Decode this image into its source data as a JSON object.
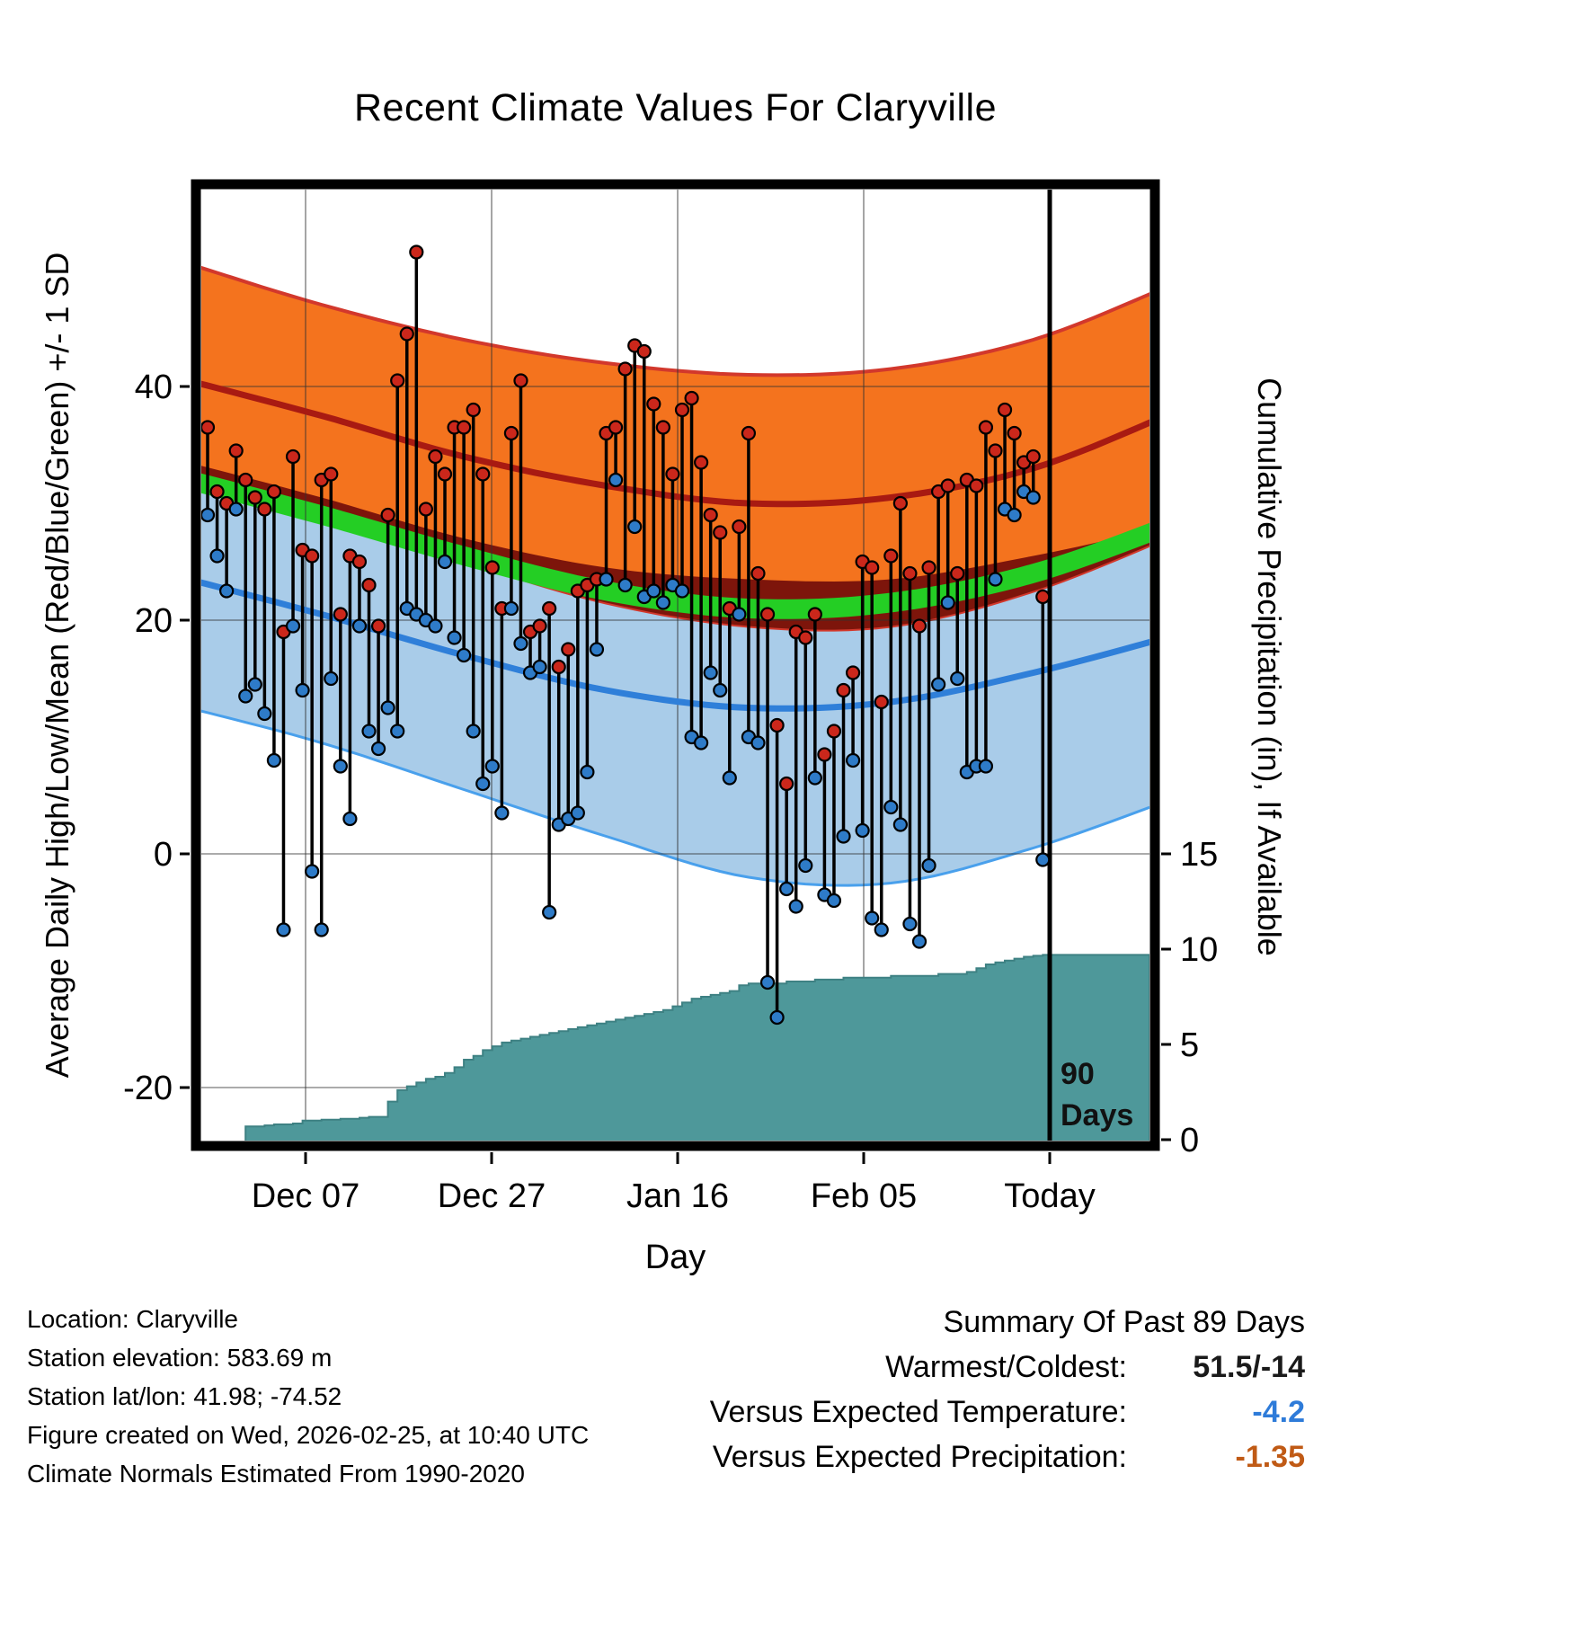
{
  "chart_data": {
    "type": "line",
    "title": "Recent Climate Values For Claryville",
    "xlabel": "Day",
    "ylabel_left": "Average Daily High/Low/Mean (Red/Blue/Green) +/- 1 SD",
    "ylabel_right": "Cumulative Precipitation (in), If Available",
    "x_tick_labels": [
      "Dec 07",
      "Dec 27",
      "Jan 16",
      "Feb 05",
      "Today"
    ],
    "y_ticks_left_f": [
      40,
      20,
      0,
      -20
    ],
    "y_ticks_right_in": [
      15,
      10,
      5,
      0
    ],
    "ylim_left_f": [
      -25,
      57
    ],
    "ylim_right_in": [
      0,
      15
    ],
    "grid": true,
    "marker": {
      "line_label_top": "90",
      "line_label_bottom": "Days"
    },
    "normals_t": [
      -2,
      12,
      27,
      42,
      57,
      72,
      87,
      101
    ],
    "normals": {
      "high_plus_sd": [
        50.5,
        47.0,
        44.0,
        42.0,
        41.0,
        41.5,
        44.0,
        48.5
      ],
      "high_mean": [
        40.5,
        37.5,
        34.0,
        31.5,
        30.0,
        30.5,
        33.0,
        37.5
      ],
      "high_minus_sd": [
        31.5,
        28.5,
        25.0,
        21.5,
        19.5,
        19.5,
        22.5,
        27.0
      ],
      "low_plus_sd": [
        33.5,
        30.5,
        27.0,
        24.5,
        23.5,
        23.5,
        25.5,
        28.0
      ],
      "low_mean": [
        23.5,
        20.5,
        17.0,
        14.0,
        12.5,
        13.0,
        15.5,
        18.5
      ],
      "low_minus_sd": [
        12.5,
        9.5,
        5.5,
        1.5,
        -2.0,
        -2.5,
        0.5,
        4.5
      ],
      "mean": [
        32.0,
        29.0,
        25.5,
        22.5,
        21.0,
        21.5,
        24.0,
        28.0
      ]
    },
    "daily_high_f": [
      36.5,
      31,
      30,
      34.5,
      32,
      30.5,
      29.5,
      31,
      19,
      34,
      26,
      25.5,
      32,
      32.5,
      20.5,
      25.5,
      25,
      23,
      19.5,
      29,
      40.5,
      44.5,
      51.5,
      29.5,
      34,
      32.5,
      36.5,
      36.5,
      38,
      32.5,
      24.5,
      21,
      36,
      40.5,
      19,
      19.5,
      21,
      16,
      17.5,
      22.5,
      23,
      23.5,
      36,
      36.5,
      41.5,
      43.5,
      43,
      38.5,
      36.5,
      32.5,
      38,
      39,
      33.5,
      29,
      27.5,
      21,
      28,
      36,
      24,
      20.5,
      11,
      6,
      19,
      18.5,
      20.5,
      8.5,
      10.5,
      14,
      15.5,
      25,
      24.5,
      13,
      25.5,
      30,
      24,
      19.5,
      24.5,
      31,
      31.5,
      24,
      32,
      31.5,
      36.5,
      34.5,
      38,
      36,
      33.5,
      34,
      22
    ],
    "daily_low_f": [
      29,
      25.5,
      22.5,
      29.5,
      13.5,
      14.5,
      12,
      8,
      -6.5,
      19.5,
      14,
      -1.5,
      -6.5,
      15,
      7.5,
      3,
      19.5,
      10.5,
      9,
      12.5,
      10.5,
      21,
      20.5,
      20,
      19.5,
      25,
      18.5,
      17,
      10.5,
      6,
      7.5,
      3.5,
      21,
      18,
      15.5,
      16,
      -5,
      2.5,
      3,
      3.5,
      7,
      17.5,
      23.5,
      32,
      23,
      28,
      22,
      22.5,
      21.5,
      23,
      22.5,
      10,
      9.5,
      15.5,
      14,
      6.5,
      20.5,
      10,
      9.5,
      -11,
      -14,
      -3,
      -4.5,
      -1,
      6.5,
      -3.5,
      -4,
      1.5,
      8,
      2,
      -5.5,
      -6.5,
      4,
      2.5,
      -6,
      -7.5,
      -1,
      14.5,
      21.5,
      15,
      7,
      7.5,
      7.5,
      23.5,
      29.5,
      29,
      31,
      30.5,
      -0.5
    ],
    "cumulative_precip_in": [
      0,
      0,
      0,
      0,
      0.7,
      0.7,
      0.75,
      0.8,
      0.8,
      0.85,
      1.0,
      1.0,
      1.05,
      1.05,
      1.1,
      1.1,
      1.15,
      1.2,
      1.2,
      2.0,
      2.6,
      2.8,
      3.0,
      3.2,
      3.3,
      3.5,
      3.8,
      4.2,
      4.4,
      4.7,
      4.9,
      5.1,
      5.2,
      5.3,
      5.4,
      5.5,
      5.6,
      5.7,
      5.8,
      5.9,
      6.0,
      6.1,
      6.2,
      6.3,
      6.4,
      6.5,
      6.6,
      6.7,
      6.8,
      7.0,
      7.2,
      7.4,
      7.5,
      7.6,
      7.7,
      7.8,
      8.1,
      8.2,
      8.2,
      8.2,
      8.2,
      8.3,
      8.3,
      8.3,
      8.4,
      8.4,
      8.4,
      8.5,
      8.5,
      8.5,
      8.5,
      8.5,
      8.6,
      8.6,
      8.6,
      8.6,
      8.6,
      8.7,
      8.7,
      8.7,
      8.8,
      9.0,
      9.2,
      9.3,
      9.4,
      9.5,
      9.6,
      9.65,
      9.7
    ],
    "colors": {
      "high_band_fill": "#F4731E",
      "high_band_edge": "#D2382C",
      "high_mean_line": "#A81A12",
      "overlap_fill": "#7D150B",
      "mean_band_fill": "#24CE24",
      "low_band_fill": "#A9CCE9",
      "low_band_edge": "#49A0EC",
      "low_mean_line": "#2F7FD9",
      "precip_fill": "#4E989A",
      "precip_edge": "#3E8183",
      "stem_line": "#000000",
      "high_dot_fill": "#CB271B",
      "low_dot_fill": "#2E7BC8",
      "grid_line": "#333333"
    }
  },
  "footer": {
    "lines": [
      "Location: Claryville",
      "Station elevation: 583.69 m",
      "Station lat/lon: 41.98; -74.52",
      "Figure created on Wed, 2026-02-25, at 10:40 UTC",
      "Climate Normals Estimated From 1990-2020"
    ]
  },
  "summary": {
    "title": "Summary Of Past 89 Days",
    "rows": [
      {
        "label": "Warmest/Coldest:",
        "value": "51.5/-14",
        "color": "#1a1a1a"
      },
      {
        "label": "Versus Expected Temperature:",
        "value": "-4.2",
        "color": "#2E7BD9"
      },
      {
        "label": "Versus Expected Precipitation:",
        "value": "-1.35",
        "color": "#C05A15"
      }
    ]
  }
}
